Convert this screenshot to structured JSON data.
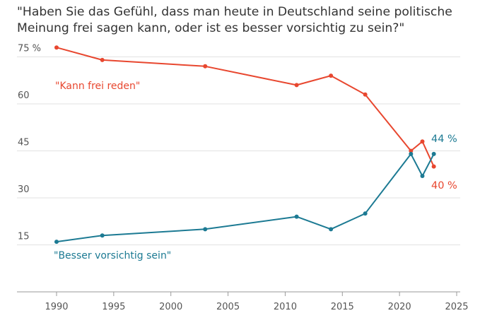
{
  "title": "\"Haben Sie das Gefühl, dass man heute in Deutschland seine politische Meinung frei sagen kann, oder ist es besser vorsichtig zu sein?\"",
  "chart_data": {
    "type": "line",
    "title": "\"Haben Sie das Gefühl, dass man heute in Deutschland seine politische Meinung frei sagen kann, oder ist es besser vorsichtig zu sein?\"",
    "xlabel": "",
    "ylabel": "",
    "xlim": [
      1985,
      2025
    ],
    "ylim": [
      0,
      78
    ],
    "x_ticks": [
      "1990",
      "1995",
      "2000",
      "2005",
      "2010",
      "2015",
      "2020",
      "2025"
    ],
    "y_ticks": [
      "75 %",
      "60",
      "45",
      "30",
      "15"
    ],
    "grid": "horizontal",
    "legend": "inline labels",
    "series": [
      {
        "name": "\"Kann frei reden\"",
        "color": "#e8472f",
        "x": [
          1990,
          1994,
          2003,
          2011,
          2014,
          2017,
          2021,
          2022,
          2023
        ],
        "values": [
          78,
          74,
          72,
          66,
          69,
          63,
          45,
          48,
          40
        ],
        "end_label": "40 %"
      },
      {
        "name": "\"Besser vorsichtig sein\"",
        "color": "#1c7a93",
        "x": [
          1990,
          1994,
          2003,
          2011,
          2014,
          2017,
          2021,
          2022,
          2023
        ],
        "values": [
          16,
          18,
          20,
          24,
          20,
          25,
          44,
          37,
          44
        ],
        "end_label": "44 %"
      }
    ]
  }
}
